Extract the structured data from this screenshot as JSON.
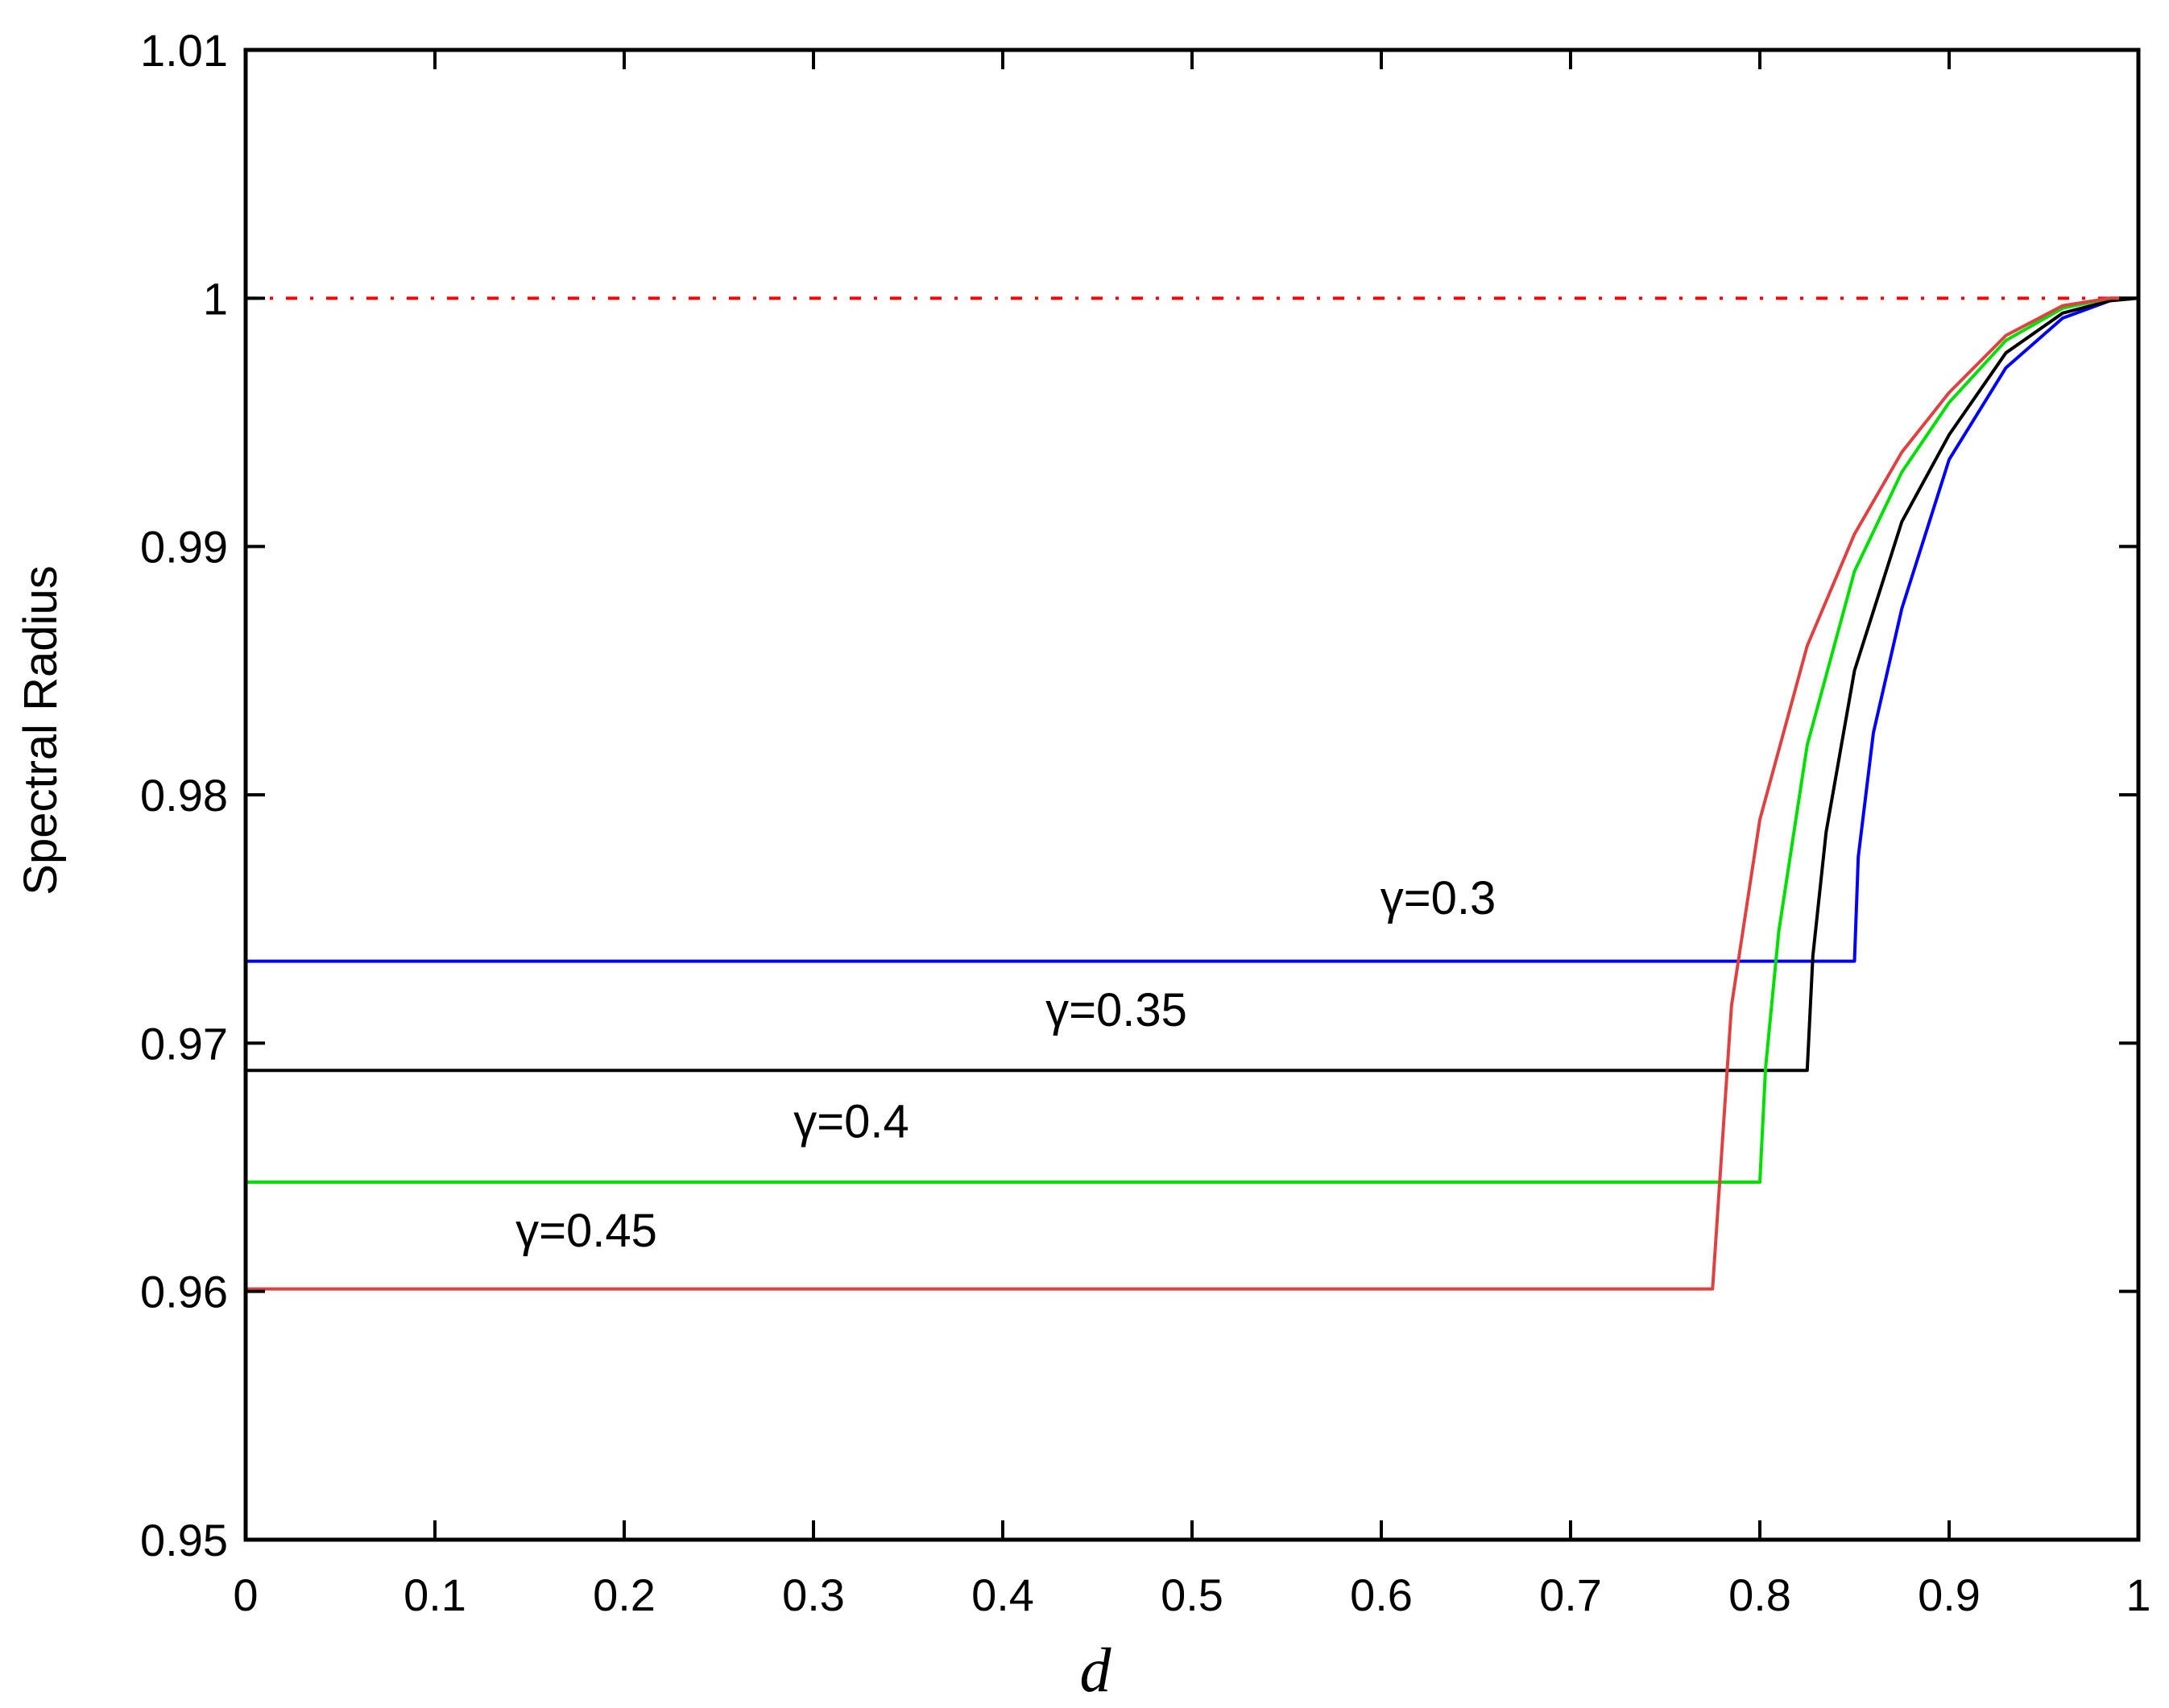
{
  "chart_data": {
    "type": "line",
    "title": "",
    "xlabel": "d",
    "ylabel": "Spectral Radius",
    "xlim": [
      0,
      1
    ],
    "ylim": [
      0.95,
      1.01
    ],
    "grid": false,
    "x_ticks": [
      0,
      0.1,
      0.2,
      0.3,
      0.4,
      0.5,
      0.6,
      0.7,
      0.8,
      0.9,
      1
    ],
    "x_tick_labels": [
      "0",
      "0.1",
      "0.2",
      "0.3",
      "0.4",
      "0.5",
      "0.6",
      "0.7",
      "0.8",
      "0.9",
      "1"
    ],
    "y_ticks": [
      0.95,
      0.96,
      0.97,
      0.98,
      0.99,
      1,
      1.01
    ],
    "y_tick_labels": [
      "0.95",
      "0.96",
      "0.97",
      "0.98",
      "0.99",
      "1",
      "1.01"
    ],
    "reference_line": {
      "y": 1,
      "color": "#ff0000",
      "style": "dash-dot"
    },
    "series": [
      {
        "name": "γ=0.3",
        "color": "#0000ff",
        "label_position": [
          0.63,
          0.9752
        ],
        "points": [
          [
            0,
            0.9733
          ],
          [
            0.85,
            0.9733
          ],
          [
            0.852,
            0.9775
          ],
          [
            0.86,
            0.9825
          ],
          [
            0.875,
            0.9875
          ],
          [
            0.9,
            0.9935
          ],
          [
            0.93,
            0.9972
          ],
          [
            0.96,
            0.9992
          ],
          [
            0.985,
            0.9999
          ],
          [
            1,
            1.0
          ]
        ]
      },
      {
        "name": "γ=0.35",
        "color": "#000000",
        "label_position": [
          0.46,
          0.9707
        ],
        "points": [
          [
            0,
            0.9689
          ],
          [
            0.825,
            0.9689
          ],
          [
            0.828,
            0.9735
          ],
          [
            0.835,
            0.9785
          ],
          [
            0.85,
            0.985
          ],
          [
            0.875,
            0.991
          ],
          [
            0.9,
            0.9945
          ],
          [
            0.93,
            0.9978
          ],
          [
            0.96,
            0.9994
          ],
          [
            0.985,
            0.9999
          ],
          [
            1,
            1.0
          ]
        ]
      },
      {
        "name": "γ=0.4",
        "color": "#00e000",
        "label_position": [
          0.32,
          0.9662
        ],
        "points": [
          [
            0,
            0.9644
          ],
          [
            0.8,
            0.9644
          ],
          [
            0.803,
            0.969
          ],
          [
            0.81,
            0.9745
          ],
          [
            0.825,
            0.982
          ],
          [
            0.85,
            0.989
          ],
          [
            0.875,
            0.993
          ],
          [
            0.9,
            0.9958
          ],
          [
            0.93,
            0.9983
          ],
          [
            0.96,
            0.9996
          ],
          [
            0.985,
            1.0
          ],
          [
            1,
            1.0
          ]
        ]
      },
      {
        "name": "γ=0.45",
        "color": "#e04040",
        "label_position": [
          0.18,
          0.9618
        ],
        "points": [
          [
            0,
            0.9601
          ],
          [
            0.775,
            0.9601
          ],
          [
            0.778,
            0.9635
          ],
          [
            0.785,
            0.9715
          ],
          [
            0.8,
            0.979
          ],
          [
            0.825,
            0.986
          ],
          [
            0.85,
            0.9905
          ],
          [
            0.875,
            0.9938
          ],
          [
            0.9,
            0.9962
          ],
          [
            0.93,
            0.9985
          ],
          [
            0.96,
            0.9997
          ],
          [
            0.985,
            1.0
          ],
          [
            1,
            1.0
          ]
        ]
      }
    ]
  }
}
